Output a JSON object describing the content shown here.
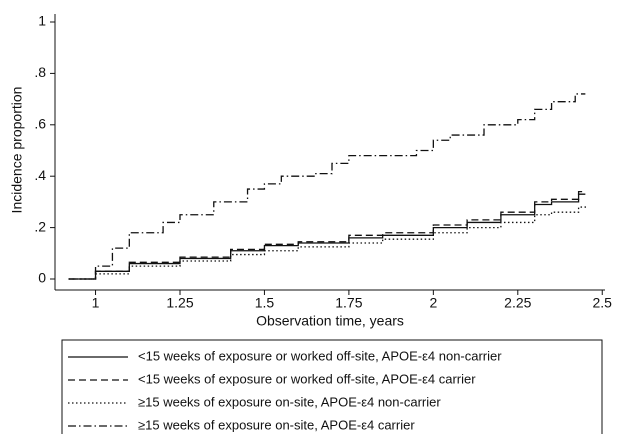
{
  "chart_data": {
    "type": "line",
    "step": true,
    "x_label": "Observation time, years",
    "y_label": "Incidence proportion",
    "xlim": [
      0.88,
      2.52
    ],
    "ylim": [
      0,
      1.02
    ],
    "xticks": [
      1,
      1.25,
      1.5,
      1.75,
      2,
      2.25,
      2.5
    ],
    "yticks": [
      0,
      {
        "value": 0.2,
        "label": ".2"
      },
      {
        "value": 0.4,
        "label": ".4"
      },
      {
        "value": 0.6,
        "label": ".6"
      },
      {
        "value": 0.8,
        "label": ".8"
      },
      1
    ],
    "legend_position": "bottom",
    "series": [
      {
        "name": "<15 weeks of exposure or worked off-site, APOE-ε4 non-carrier",
        "color": "#111111",
        "dash": "solid",
        "x": [
          0.92,
          1.0,
          1.1,
          1.25,
          1.4,
          1.5,
          1.6,
          1.75,
          1.85,
          2.0,
          2.1,
          2.2,
          2.3,
          2.35,
          2.43,
          2.45
        ],
        "values": [
          0,
          0.03,
          0.06,
          0.08,
          0.11,
          0.13,
          0.14,
          0.16,
          0.17,
          0.2,
          0.22,
          0.25,
          0.29,
          0.3,
          0.33,
          0.33
        ]
      },
      {
        "name": "<15 weeks of exposure or worked off-site, APOE-ε4 carrier",
        "color": "#111111",
        "dash": "dashed",
        "x": [
          0.92,
          1.0,
          1.1,
          1.25,
          1.4,
          1.5,
          1.6,
          1.75,
          1.85,
          2.0,
          2.1,
          2.2,
          2.3,
          2.35,
          2.43,
          2.45
        ],
        "values": [
          0,
          0.03,
          0.065,
          0.085,
          0.115,
          0.135,
          0.145,
          0.17,
          0.18,
          0.21,
          0.23,
          0.26,
          0.3,
          0.31,
          0.34,
          0.34
        ]
      },
      {
        "name": "≥15 weeks of exposure on-site, APOE-ε4 non-carrier",
        "color": "#111111",
        "dash": "dotted",
        "x": [
          0.92,
          1.0,
          1.1,
          1.25,
          1.4,
          1.5,
          1.6,
          1.75,
          1.85,
          2.0,
          2.1,
          2.2,
          2.3,
          2.35,
          2.43,
          2.45
        ],
        "values": [
          0,
          0.02,
          0.05,
          0.07,
          0.095,
          0.11,
          0.125,
          0.14,
          0.155,
          0.18,
          0.2,
          0.22,
          0.25,
          0.26,
          0.28,
          0.29
        ]
      },
      {
        "name": "≥15 weeks of exposure on-site, APOE-ε4 carrier",
        "color": "#111111",
        "dash": "dashdot",
        "x": [
          0.92,
          1.0,
          1.05,
          1.1,
          1.2,
          1.25,
          1.35,
          1.45,
          1.5,
          1.55,
          1.65,
          1.7,
          1.75,
          1.85,
          1.95,
          2.0,
          2.05,
          2.15,
          2.25,
          2.3,
          2.35,
          2.42,
          2.45
        ],
        "values": [
          0,
          0.05,
          0.12,
          0.18,
          0.22,
          0.25,
          0.3,
          0.35,
          0.37,
          0.4,
          0.41,
          0.45,
          0.48,
          0.48,
          0.5,
          0.54,
          0.56,
          0.6,
          0.62,
          0.66,
          0.69,
          0.72,
          0.72
        ]
      }
    ]
  }
}
